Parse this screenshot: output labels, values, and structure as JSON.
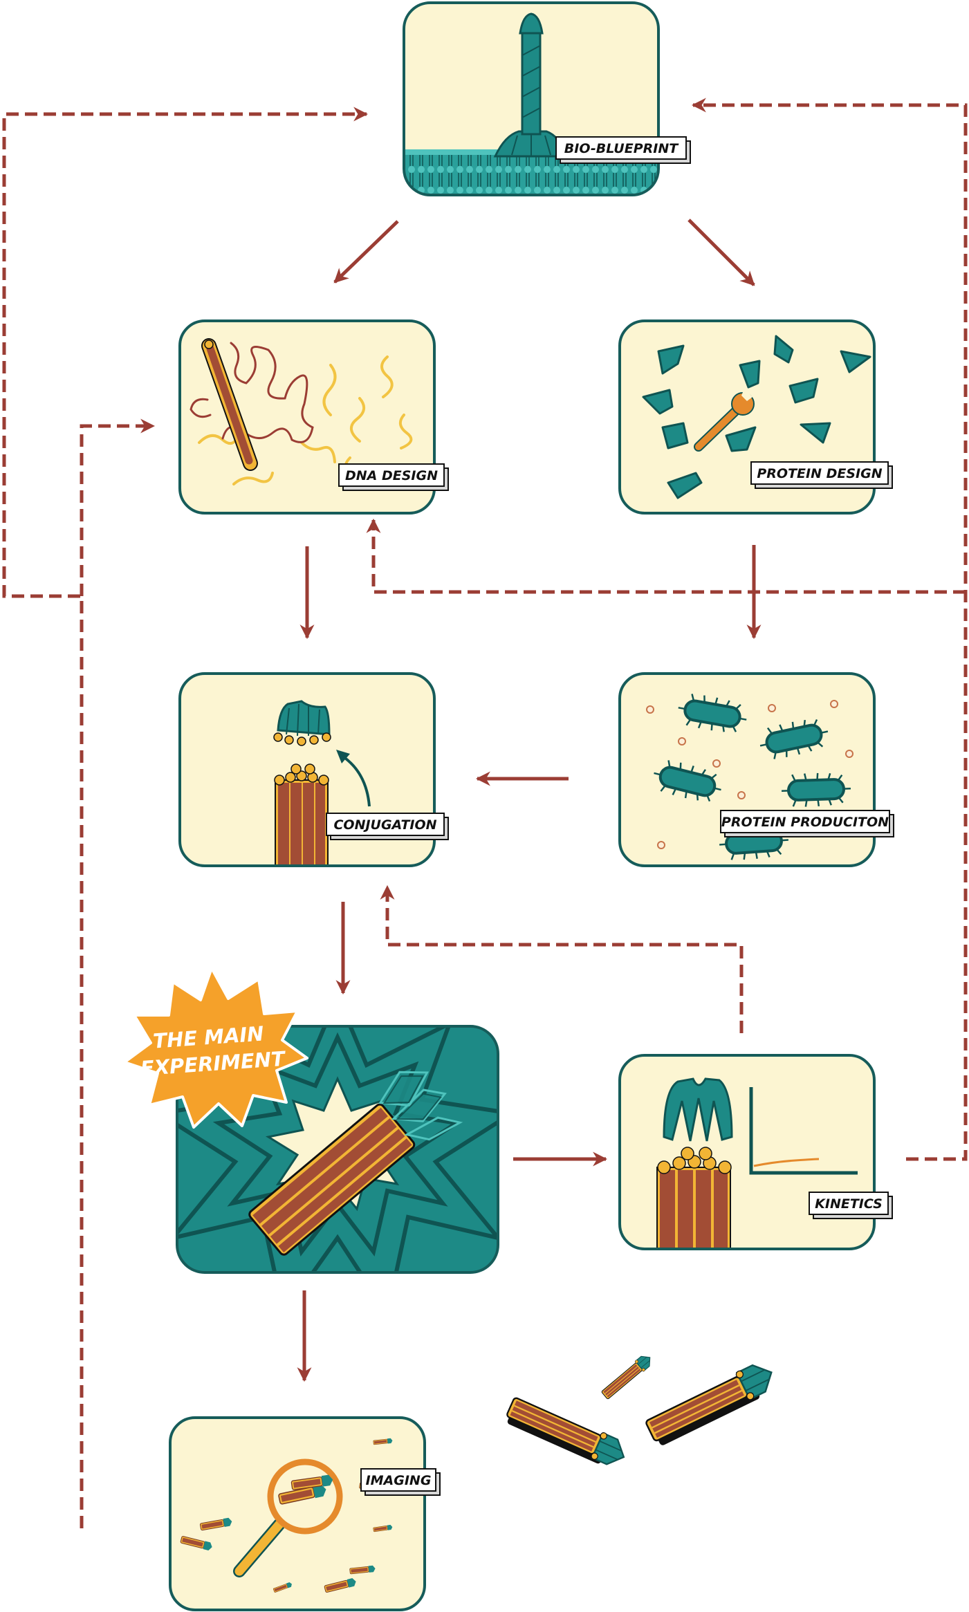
{
  "nodes": {
    "blueprint": {
      "label": "BIO-BLUEPRINT"
    },
    "dna_design": {
      "label": "DNA DESIGN"
    },
    "protein_design": {
      "label": "PROTEIN DESIGN"
    },
    "conjugation": {
      "label": "CONJUGATION"
    },
    "protein_production": {
      "label": "PROTEIN PRODUCITON"
    },
    "main_experiment": {
      "label_line1": "THE MAIN",
      "label_line2": "EXPERIMENT"
    },
    "kinetics": {
      "label": "KINETICS"
    },
    "imaging": {
      "label": "IMAGING"
    }
  },
  "colors": {
    "panel_fill": "#fcf5d2",
    "panel_border": "#165c5a",
    "teal": "#1d8a86",
    "teal_dark": "#0f5452",
    "arrow": "#9b3d34",
    "rust": "#a24d35",
    "yellow": "#f2b535",
    "orange_burst": "#f5a12a"
  }
}
